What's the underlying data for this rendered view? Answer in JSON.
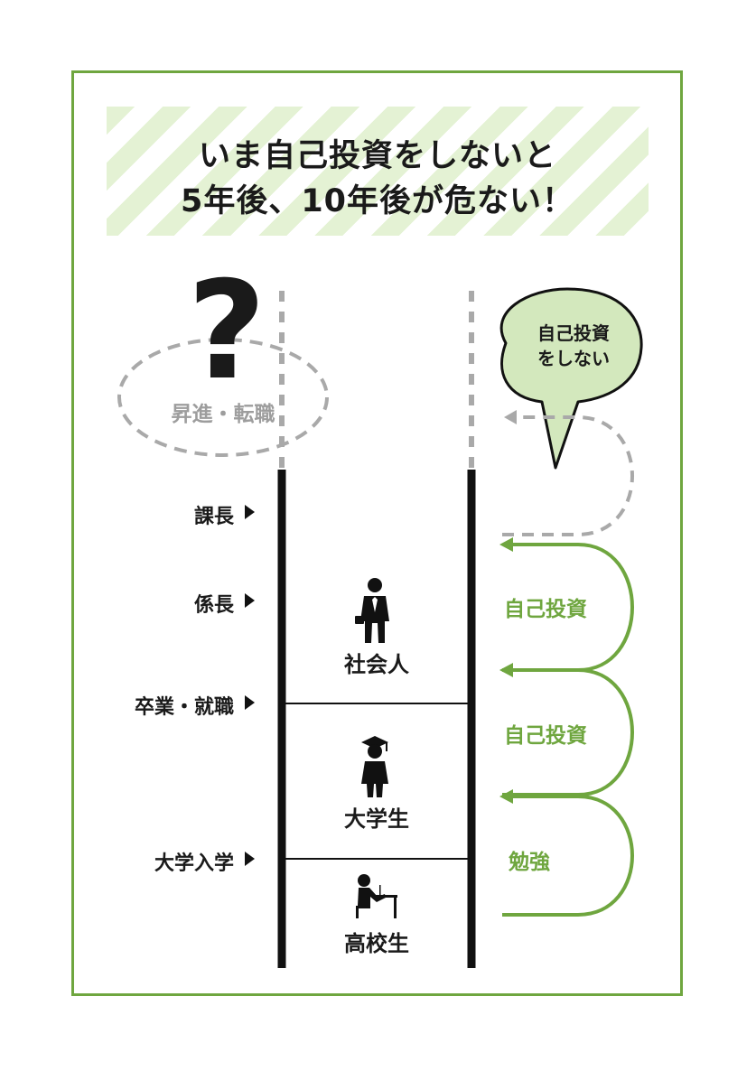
{
  "title": {
    "line1": "いま自己投資をしないと",
    "line2": "5年後、10年後が危ない！"
  },
  "future": {
    "question_mark": "?",
    "label": "昇進・転職"
  },
  "speech_bubble": {
    "line1": "自己投資",
    "line2": "をしない"
  },
  "levels": [
    {
      "label": "課長"
    },
    {
      "label": "係長"
    },
    {
      "label": "卒業・就職"
    },
    {
      "label": "大学入学"
    }
  ],
  "stages": [
    {
      "label": "社会人",
      "icon": "businessman-icon"
    },
    {
      "label": "大学生",
      "icon": "graduate-icon"
    },
    {
      "label": "高校生",
      "icon": "student-desk-icon"
    }
  ],
  "loops": [
    {
      "label": "自己投資"
    },
    {
      "label": "自己投資"
    },
    {
      "label": "勉強"
    }
  ],
  "colors": {
    "accent": "#6fa63f",
    "bubble_fill": "#d3e8bd",
    "dashed_gray": "#a9a9a9",
    "ink": "#111111"
  }
}
